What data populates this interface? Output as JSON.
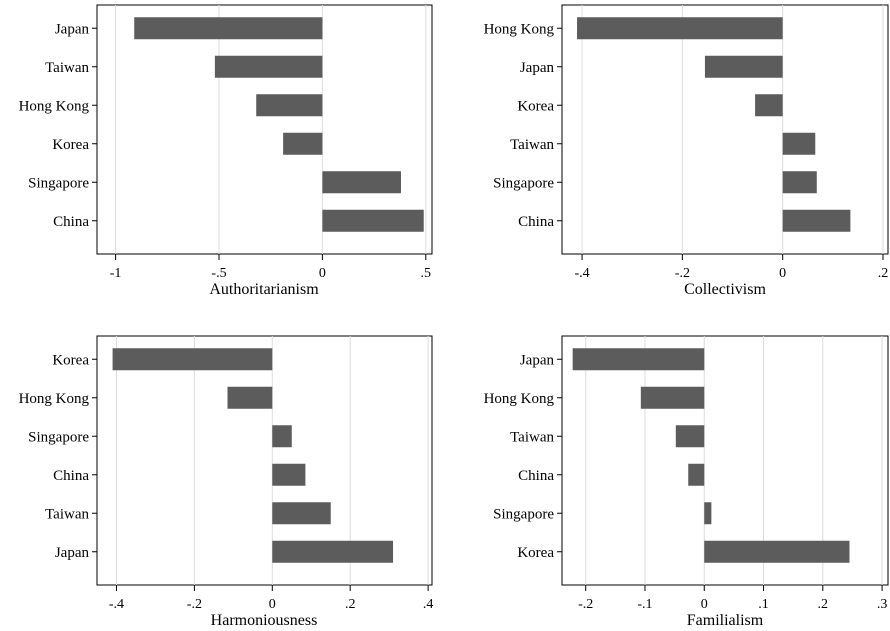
{
  "chart_data": [
    {
      "type": "bar",
      "orientation": "horizontal",
      "xlabel": "Authoritarianism",
      "categories": [
        "Japan",
        "Taiwan",
        "Hong Kong",
        "Korea",
        "Singapore",
        "China"
      ],
      "values": [
        -0.91,
        -0.52,
        -0.32,
        -0.19,
        0.38,
        0.49
      ],
      "xlim": [
        -1.09,
        0.53
      ],
      "xticks": [
        -1,
        -0.5,
        0,
        0.5
      ],
      "xtick_labels": [
        "-1",
        "-.5",
        "0",
        ".5"
      ],
      "grid": "vertical",
      "bar_color": "#5c5c5c"
    },
    {
      "type": "bar",
      "orientation": "horizontal",
      "xlabel": "Collectivism",
      "categories": [
        "Hong Kong",
        "Japan",
        "Korea",
        "Taiwan",
        "Singapore",
        "China"
      ],
      "values": [
        -0.41,
        -0.155,
        -0.055,
        0.065,
        0.068,
        0.135
      ],
      "xlim": [
        -0.44,
        0.21
      ],
      "xticks": [
        -0.4,
        -0.2,
        0,
        0.2
      ],
      "xtick_labels": [
        "-.4",
        "-.2",
        "0",
        ".2"
      ],
      "grid": "vertical",
      "bar_color": "#5c5c5c"
    },
    {
      "type": "bar",
      "orientation": "horizontal",
      "xlabel": "Harmoniousness",
      "categories": [
        "Korea",
        "Hong Kong",
        "Singapore",
        "China",
        "Taiwan",
        "Japan"
      ],
      "values": [
        -0.41,
        -0.115,
        0.05,
        0.085,
        0.15,
        0.31
      ],
      "xlim": [
        -0.45,
        0.41
      ],
      "xticks": [
        -0.4,
        -0.2,
        0,
        0.2,
        0.4
      ],
      "xtick_labels": [
        "-.4",
        "-.2",
        "0",
        ".2",
        ".4"
      ],
      "grid": "vertical",
      "bar_color": "#5c5c5c"
    },
    {
      "type": "bar",
      "orientation": "horizontal",
      "xlabel": "Familialism",
      "categories": [
        "Japan",
        "Hong Kong",
        "Taiwan",
        "China",
        "Singapore",
        "Korea"
      ],
      "values": [
        -0.222,
        -0.107,
        -0.048,
        -0.027,
        0.012,
        0.245
      ],
      "xlim": [
        -0.24,
        0.31
      ],
      "xticks": [
        -0.2,
        -0.1,
        0,
        0.1,
        0.2,
        0.3
      ],
      "xtick_labels": [
        "-.2",
        "-.1",
        "0",
        ".1",
        ".2",
        ".3"
      ],
      "grid": "vertical",
      "bar_color": "#5c5c5c"
    }
  ]
}
